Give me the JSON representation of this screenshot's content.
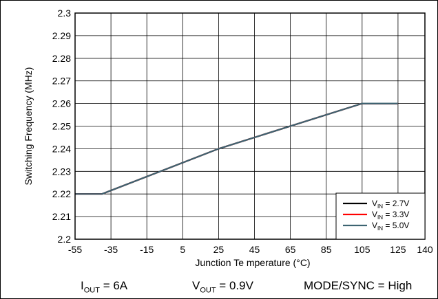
{
  "chart_data": {
    "type": "line",
    "title": "",
    "xlabel": "Junction Te mperature (°C)",
    "ylabel": "Switching Frequency (MHz)",
    "xlim": [
      -55,
      140
    ],
    "ylim": [
      2.2,
      2.3
    ],
    "xticks": [
      -55,
      -35,
      -15,
      5,
      25,
      45,
      65,
      85,
      105,
      125,
      140
    ],
    "xtick_labels": [
      "-55",
      "-35",
      "-15",
      "5",
      "25",
      "45",
      "65",
      "85",
      "105",
      "125",
      "140"
    ],
    "yticks": [
      2.2,
      2.21,
      2.22,
      2.23,
      2.24,
      2.25,
      2.26,
      2.27,
      2.28,
      2.29,
      2.3
    ],
    "ytick_labels": [
      "2.2",
      "2.21",
      "2.22",
      "2.23",
      "2.24",
      "2.25",
      "2.26",
      "2.27",
      "2.28",
      "2.29",
      "2.3"
    ],
    "grid": true,
    "legend_position": "bottom-right",
    "series": [
      {
        "name_main": "V",
        "name_sub": "IN",
        "name_rest": " = 2.7V",
        "color": "#000000",
        "x": [
          -55,
          -40,
          25,
          105,
          125
        ],
        "y": [
          2.22,
          2.22,
          2.24,
          2.26,
          2.26
        ]
      },
      {
        "name_main": "V",
        "name_sub": "IN",
        "name_rest": " = 3.3V",
        "color": "#ff0000",
        "x": [
          -55,
          -40,
          25,
          105,
          125
        ],
        "y": [
          2.22,
          2.22,
          2.24,
          2.26,
          2.26
        ]
      },
      {
        "name_main": "V",
        "name_sub": "IN",
        "name_rest": " = 5.0V",
        "color": "#3d6472",
        "x": [
          -55,
          -40,
          25,
          105,
          125
        ],
        "y": [
          2.22,
          2.22,
          2.24,
          2.26,
          2.26
        ]
      }
    ]
  },
  "conditions": {
    "iout_main": "I",
    "iout_sub": "OUT",
    "iout_rest": " = 6A",
    "vout_main": "V",
    "vout_sub": "OUT",
    "vout_rest": " = 0.9V",
    "mode": "MODE/SYNC = High"
  }
}
